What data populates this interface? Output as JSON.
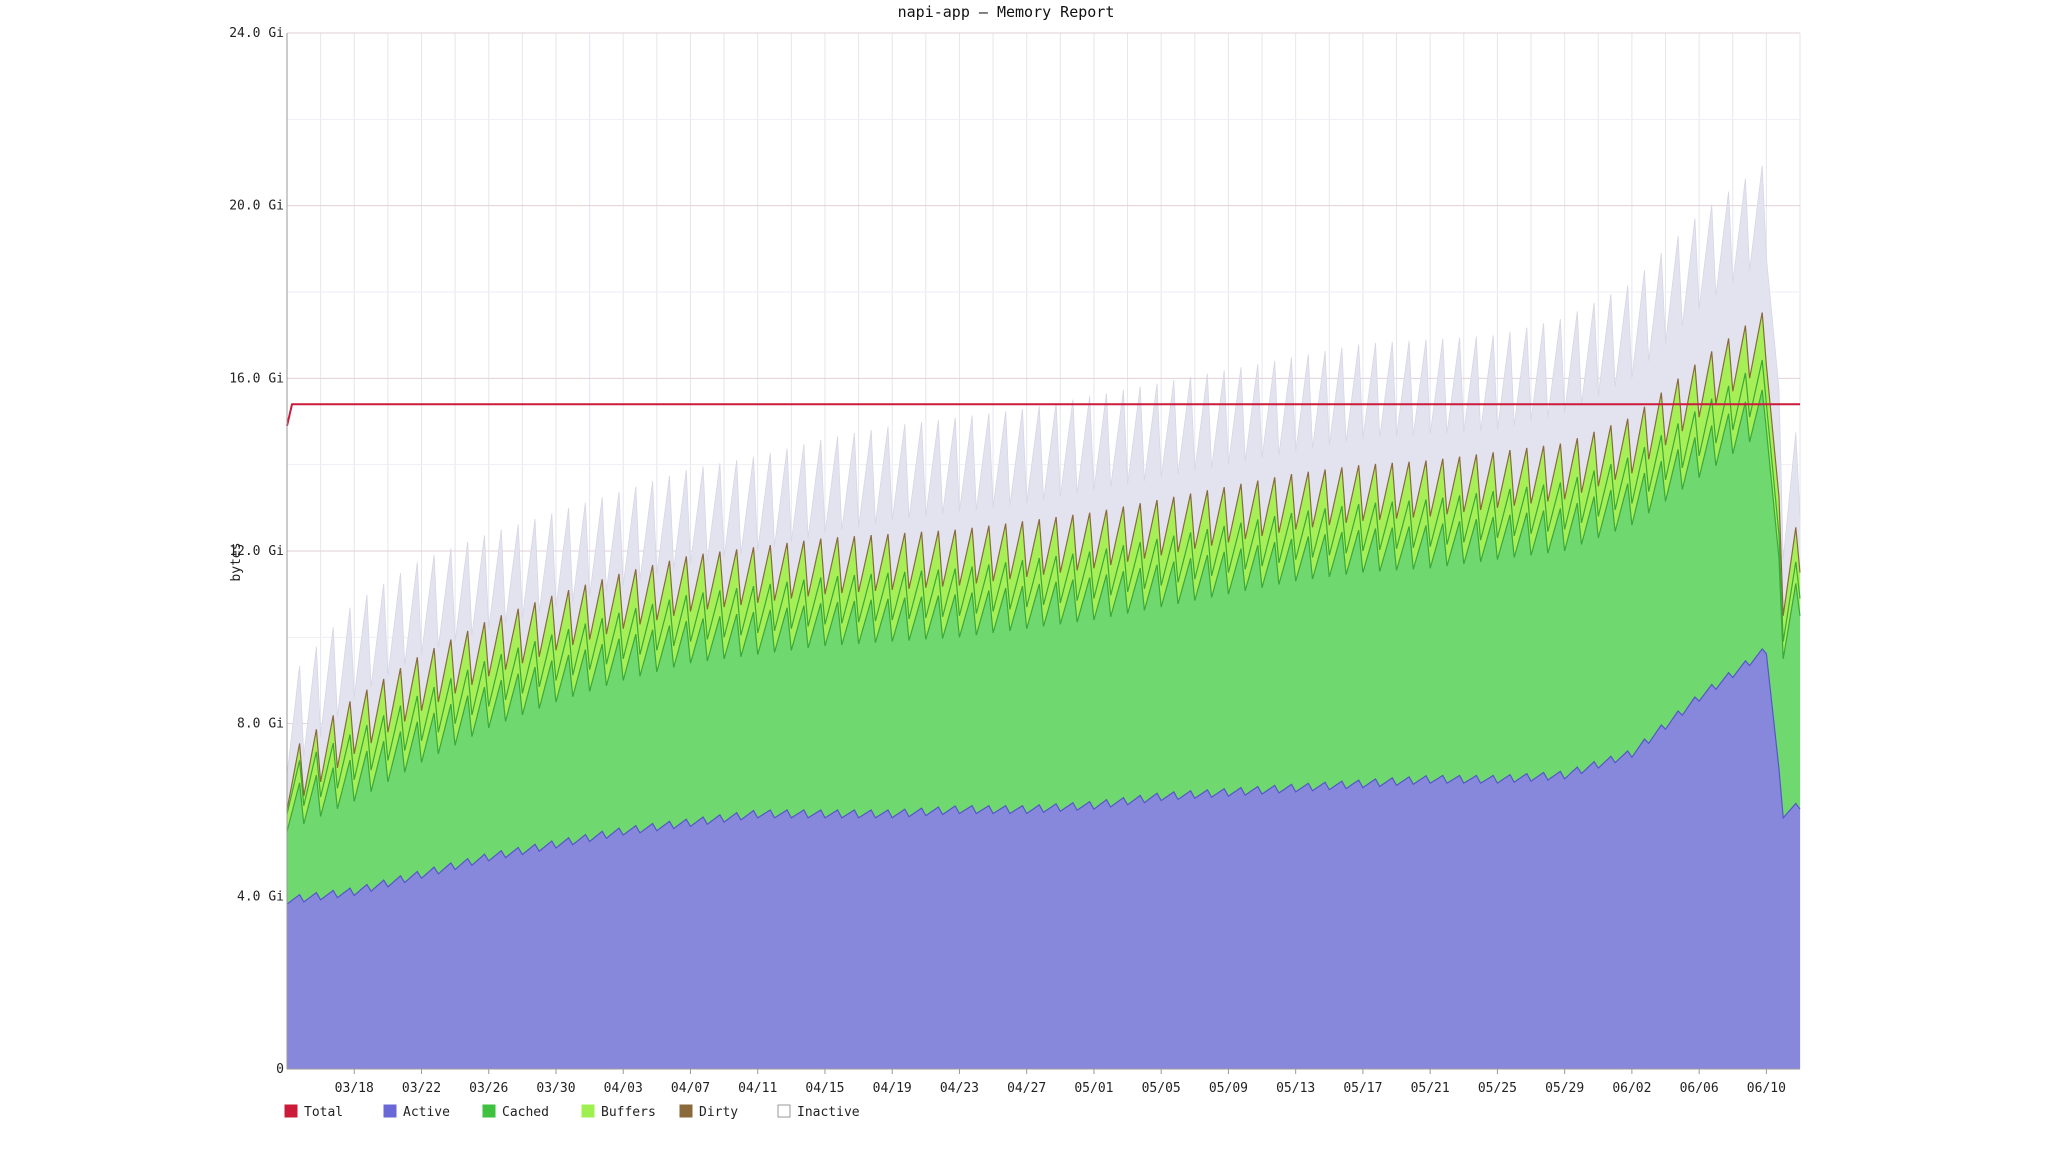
{
  "chart_data": {
    "type": "area",
    "title": "napi-app — Memory Report",
    "ylabel": "bytes",
    "xlabel": "",
    "y_unit": "GiB",
    "ylim": [
      0,
      24
    ],
    "x_range": [
      "03/14",
      "06/12"
    ],
    "y_ticks": [
      {
        "value": 0,
        "label": "0"
      },
      {
        "value": 4,
        "label": "4.0 Gi"
      },
      {
        "value": 8,
        "label": "8.0 Gi"
      },
      {
        "value": 12,
        "label": "12.0 Gi"
      },
      {
        "value": 16,
        "label": "16.0 Gi"
      },
      {
        "value": 20,
        "label": "20.0 Gi"
      },
      {
        "value": 24,
        "label": "24.0 Gi"
      }
    ],
    "x_ticks": [
      "03/18",
      "03/22",
      "03/26",
      "03/30",
      "04/03",
      "04/07",
      "04/11",
      "04/15",
      "04/19",
      "04/23",
      "04/27",
      "05/01",
      "05/05",
      "05/09",
      "05/13",
      "05/17",
      "05/21",
      "05/25",
      "05/29",
      "06/02",
      "06/06",
      "06/10"
    ],
    "grid": true,
    "stacked": true,
    "legend_position": "bottom-left",
    "legend": [
      "Total",
      "Active",
      "Cached",
      "Buffers",
      "Dirty",
      "Inactive"
    ],
    "colors": {
      "Total": "#cc1b3a",
      "Active": "#6a68d6",
      "Cached": "#3fc23f",
      "Buffers": "#9ef04e",
      "Dirty": "#8a6a3a",
      "Inactive": "#ddddec"
    },
    "series": [
      {
        "name": "Total",
        "x": [
          "03/14",
          "03/18",
          "03/22",
          "03/26",
          "03/30",
          "04/03",
          "04/07",
          "04/11",
          "04/15",
          "04/19",
          "04/23",
          "04/27",
          "05/01",
          "05/05",
          "05/09",
          "05/13",
          "05/17",
          "05/21",
          "05/25",
          "05/29",
          "06/02",
          "06/06",
          "06/10",
          "06/12"
        ],
        "values": [
          15.4,
          15.4,
          15.4,
          15.4,
          15.4,
          15.4,
          15.4,
          15.4,
          15.4,
          15.4,
          15.4,
          15.4,
          15.4,
          15.4,
          15.4,
          15.4,
          15.4,
          15.4,
          15.4,
          15.4,
          15.4,
          15.4,
          15.4,
          15.4
        ]
      },
      {
        "name": "Active",
        "x": [
          "03/14",
          "03/18",
          "03/22",
          "03/26",
          "03/30",
          "04/03",
          "04/07",
          "04/11",
          "04/15",
          "04/19",
          "04/23",
          "04/27",
          "05/01",
          "05/05",
          "05/09",
          "05/13",
          "05/17",
          "05/21",
          "05/25",
          "05/29",
          "06/02",
          "06/06",
          "06/10",
          "06/11",
          "06/12"
        ],
        "values": [
          4.0,
          4.2,
          4.6,
          5.0,
          5.3,
          5.6,
          5.8,
          6.0,
          6.0,
          6.0,
          6.1,
          6.1,
          6.2,
          6.4,
          6.5,
          6.6,
          6.7,
          6.8,
          6.8,
          6.9,
          7.4,
          8.7,
          9.8,
          6.0,
          6.2
        ]
      },
      {
        "name": "Cached",
        "x": [
          "03/14",
          "03/18",
          "03/22",
          "03/26",
          "03/30",
          "04/03",
          "04/07",
          "04/11",
          "04/15",
          "04/19",
          "04/23",
          "04/27",
          "05/01",
          "05/05",
          "05/09",
          "05/13",
          "05/17",
          "05/21",
          "05/25",
          "05/29",
          "06/02",
          "06/06",
          "06/10",
          "06/11",
          "06/12"
        ],
        "values": [
          6.5,
          7.2,
          8.1,
          8.9,
          9.5,
          10.0,
          10.4,
          10.6,
          10.8,
          10.9,
          11.0,
          11.2,
          11.4,
          11.7,
          12.0,
          12.3,
          12.5,
          12.6,
          12.8,
          13.0,
          13.6,
          14.7,
          15.8,
          10.5,
          11.5
        ]
      },
      {
        "name": "Buffers",
        "x": [
          "03/14",
          "03/18",
          "03/22",
          "03/26",
          "03/30",
          "04/03",
          "04/07",
          "04/11",
          "04/15",
          "04/19",
          "04/23",
          "04/27",
          "05/01",
          "05/05",
          "05/09",
          "05/13",
          "05/17",
          "05/21",
          "05/25",
          "05/29",
          "06/02",
          "06/06",
          "06/10",
          "06/11",
          "06/12"
        ],
        "values": [
          7.0,
          7.8,
          8.7,
          9.5,
          10.1,
          10.6,
          11.0,
          11.2,
          11.4,
          11.5,
          11.6,
          11.8,
          12.0,
          12.3,
          12.6,
          12.9,
          13.1,
          13.2,
          13.4,
          13.6,
          14.2,
          15.3,
          16.5,
          11.0,
          12.0
        ]
      },
      {
        "name": "Dirty",
        "x": [
          "03/14",
          "03/18",
          "03/22",
          "03/26",
          "03/30",
          "04/03",
          "04/07",
          "04/11",
          "04/15",
          "04/19",
          "04/23",
          "04/27",
          "05/01",
          "05/05",
          "05/09",
          "05/13",
          "05/17",
          "05/21",
          "05/25",
          "05/29",
          "06/02",
          "06/06",
          "06/10",
          "06/11",
          "06/12"
        ],
        "values": [
          7.3,
          8.6,
          9.6,
          10.4,
          11.0,
          11.5,
          11.9,
          12.1,
          12.3,
          12.4,
          12.5,
          12.7,
          12.9,
          13.2,
          13.5,
          13.8,
          14.0,
          14.1,
          14.3,
          14.5,
          15.1,
          16.4,
          17.6,
          11.8,
          12.8
        ]
      },
      {
        "name": "Inactive",
        "x": [
          "03/14",
          "03/18",
          "03/22",
          "03/26",
          "03/30",
          "04/03",
          "04/07",
          "04/11",
          "04/15",
          "04/19",
          "04/23",
          "04/27",
          "05/01",
          "05/05",
          "05/09",
          "05/13",
          "05/17",
          "05/21",
          "05/25",
          "05/29",
          "06/02",
          "06/06",
          "06/10",
          "06/11",
          "06/12"
        ],
        "values": [
          9.0,
          10.8,
          11.8,
          12.4,
          12.9,
          13.4,
          13.9,
          14.2,
          14.6,
          14.9,
          15.1,
          15.3,
          15.6,
          15.9,
          16.2,
          16.5,
          16.8,
          16.9,
          17.0,
          17.4,
          18.2,
          19.8,
          21.0,
          14.0,
          15.0
        ]
      }
    ]
  }
}
